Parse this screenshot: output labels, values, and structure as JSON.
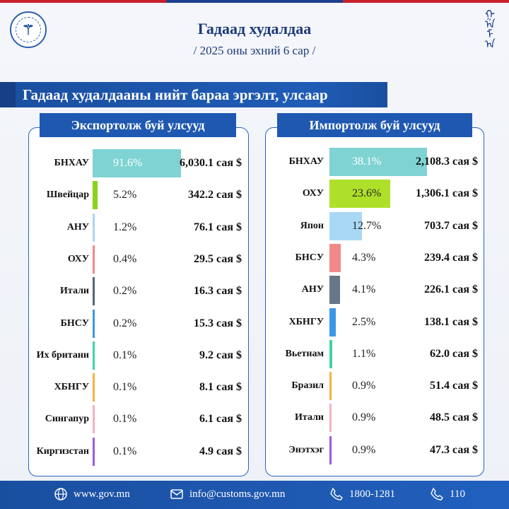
{
  "header": {
    "title": "Гадаад худалдаа",
    "subtitle": "/ 2025 оны эхний 6 сар /",
    "section": "Гадаад худалдааны нийт бараа эргэлт, улсаар"
  },
  "export": {
    "heading": "Экспортолж буй улсууд",
    "rows": [
      {
        "country": "БНХАУ",
        "pct": "91.6%",
        "value": "6,030.1  сая $",
        "share": 91.6,
        "color": "#7fd3d3"
      },
      {
        "country": "Швейцар",
        "pct": "5.2%",
        "value": "342.2 сая $",
        "share": 5.2,
        "color": "#8ed11a"
      },
      {
        "country": "АНУ",
        "pct": "1.2%",
        "value": "76.1 сая $",
        "share": 1.2,
        "color": "#a9d8f5"
      },
      {
        "country": "ОХУ",
        "pct": "0.4%",
        "value": "29.5 сая $",
        "share": 0.4,
        "color": "#f08a8a"
      },
      {
        "country": "Итали",
        "pct": "0.2%",
        "value": "16.3 сая $",
        "share": 0.2,
        "color": "#556677"
      },
      {
        "country": "БНСУ",
        "pct": "0.2%",
        "value": "15.3 сая $",
        "share": 0.2,
        "color": "#3b97e8"
      },
      {
        "country": "Их британи",
        "pct": "0.1%",
        "value": "9.2 сая $",
        "share": 0.1,
        "color": "#3fd4a5"
      },
      {
        "country": "ХБНГУ",
        "pct": "0.1%",
        "value": "8.1 сая $",
        "share": 0.1,
        "color": "#f2b440"
      },
      {
        "country": "Сингапур",
        "pct": "0.1%",
        "value": "6.1 сая $",
        "share": 0.1,
        "color": "#f4b3c0"
      },
      {
        "country": "Киргизстан",
        "pct": "0.1%",
        "value": "4.9 сая $",
        "share": 0.1,
        "color": "#9b5ad8"
      }
    ]
  },
  "import": {
    "heading": "Импортолж буй улсууд",
    "rows": [
      {
        "country": "БНХАУ",
        "pct": "38.1%",
        "value": "2,108.3 сая $",
        "share": 38.1,
        "color": "#7fd3d3"
      },
      {
        "country": "ОХУ",
        "pct": "23.6%",
        "value": "1,306.1 сая $",
        "share": 23.6,
        "color": "#aee02a"
      },
      {
        "country": "Япон",
        "pct": "12.7%",
        "value": "703.7 сая $",
        "share": 12.7,
        "color": "#a9d8f5"
      },
      {
        "country": "БНСУ",
        "pct": "4.3%",
        "value": "239.4 сая $",
        "share": 4.3,
        "color": "#f08a8a"
      },
      {
        "country": "АНУ",
        "pct": "4.1%",
        "value": "226.1 сая $",
        "share": 4.1,
        "color": "#667788"
      },
      {
        "country": "ХБНГУ",
        "pct": "2.5%",
        "value": "138.1 сая $",
        "share": 2.5,
        "color": "#3b97e8"
      },
      {
        "country": "Вьетнам",
        "pct": "1.1%",
        "value": "62.0 сая $",
        "share": 1.1,
        "color": "#3fd4a5"
      },
      {
        "country": "Бразил",
        "pct": "0.9%",
        "value": "51.4 сая $",
        "share": 0.9,
        "color": "#f2b440"
      },
      {
        "country": "Итали",
        "pct": "0.9%",
        "value": "48.5 сая $",
        "share": 0.9,
        "color": "#f4b3c0"
      },
      {
        "country": "Энэтхэг",
        "pct": "0.9%",
        "value": "47.3 сая $",
        "share": 0.9,
        "color": "#9b5ad8"
      }
    ]
  },
  "footer": {
    "website": "www.gov.mn",
    "email": "info@customs.gov.mn",
    "phone1": "1800-1281",
    "phone2": "110"
  }
}
